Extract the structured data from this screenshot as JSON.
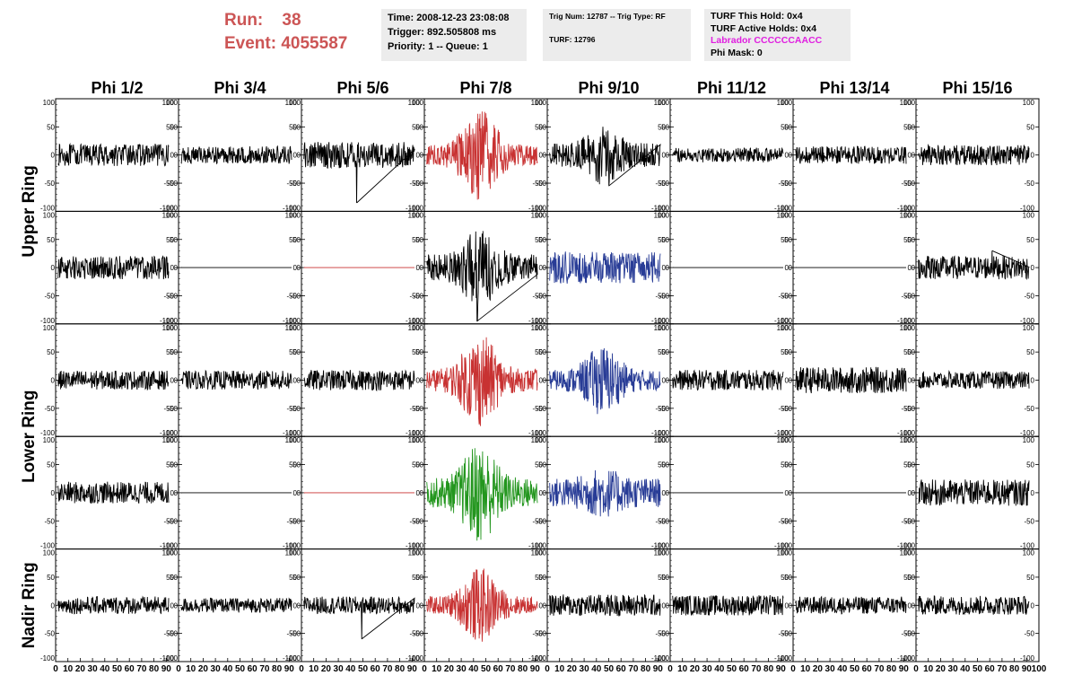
{
  "header": {
    "run_label": "Run:",
    "run_value": "38",
    "event_label": "Event:",
    "event_value": "4055587",
    "time": "Time: 2008-12-23 23:08:08",
    "trigger": "Trigger: 892.505808 ms",
    "priority": "Priority: 1 -- Queue: 1",
    "trig_num": "Trig Num: 12787 -- Trig Type: RF",
    "turf": "TURF: 12796",
    "turf_hold": "TURF This Hold: 0x4",
    "turf_active": "TURF Active Holds: 0x4",
    "labrador": "Labrador CCCCCCAACC",
    "phi_mask": "Phi Mask: 0"
  },
  "chart_data": {
    "type": "line",
    "title": "",
    "columns": [
      "Phi 1/2",
      "Phi 3/4",
      "Phi 5/6",
      "Phi 7/8",
      "Phi 9/10",
      "Phi 11/12",
      "Phi 13/14",
      "Phi 15/16"
    ],
    "ring_labels": [
      "Upper Ring",
      "Lower Ring",
      "Nadir Ring"
    ],
    "xlim": [
      0,
      100
    ],
    "ylim": [
      -100,
      100
    ],
    "x_ticks": [
      0,
      10,
      20,
      30,
      40,
      50,
      60,
      70,
      80,
      90,
      100
    ],
    "y_ticks": [
      100,
      50,
      0,
      -50,
      -100
    ],
    "colors": {
      "black": "#000000",
      "red": "#c83232",
      "blue": "#283c96",
      "green": "#23961e"
    },
    "panels": [
      [
        {
          "color": "black",
          "amp": 15,
          "burst": 0,
          "spike": null
        },
        {
          "color": "black",
          "amp": 12,
          "burst": 0,
          "spike": null
        },
        {
          "color": "black",
          "amp": 18,
          "burst": 0,
          "spike": {
            "x": 45,
            "y": -85
          }
        },
        {
          "color": "red",
          "amp": 14,
          "burst": 50,
          "spike": null
        },
        {
          "color": "black",
          "amp": 16,
          "burst": 25,
          "spike": {
            "x": 50,
            "y": -55
          }
        },
        {
          "color": "black",
          "amp": 10,
          "burst": 0,
          "spike": null
        },
        {
          "color": "black",
          "amp": 12,
          "burst": 0,
          "spike": null
        },
        {
          "color": "black",
          "amp": 14,
          "burst": 0,
          "spike": null
        }
      ],
      [
        {
          "color": "black",
          "amp": 16,
          "burst": 0,
          "spike": null
        },
        {
          "color": "black",
          "amp": 0,
          "burst": 0,
          "spike": null
        },
        {
          "color": "red",
          "amp": 0,
          "burst": 0,
          "spike": null
        },
        {
          "color": "black",
          "amp": 18,
          "burst": 35,
          "spike": {
            "x": 43,
            "y": -95
          }
        },
        {
          "color": "blue",
          "amp": 22,
          "burst": 0,
          "spike": null
        },
        {
          "color": "black",
          "amp": 0,
          "burst": 0,
          "spike": null
        },
        {
          "color": "black",
          "amp": 0,
          "burst": 0,
          "spike": null
        },
        {
          "color": "black",
          "amp": 16,
          "burst": 0,
          "spike": {
            "x": 62,
            "y": 30
          }
        }
      ],
      [
        {
          "color": "black",
          "amp": 13,
          "burst": 0,
          "spike": null
        },
        {
          "color": "black",
          "amp": 13,
          "burst": 0,
          "spike": null
        },
        {
          "color": "black",
          "amp": 14,
          "burst": 0,
          "spike": null
        },
        {
          "color": "red",
          "amp": 15,
          "burst": 50,
          "spike": null
        },
        {
          "color": "blue",
          "amp": 14,
          "burst": 35,
          "spike": null
        },
        {
          "color": "black",
          "amp": 14,
          "burst": 0,
          "spike": null
        },
        {
          "color": "black",
          "amp": 18,
          "burst": 0,
          "spike": null
        },
        {
          "color": "black",
          "amp": 12,
          "burst": 0,
          "spike": null
        }
      ],
      [
        {
          "color": "black",
          "amp": 15,
          "burst": 0,
          "spike": null
        },
        {
          "color": "black",
          "amp": 0,
          "burst": 0,
          "spike": null
        },
        {
          "color": "red",
          "amp": 0,
          "burst": 0,
          "spike": null
        },
        {
          "color": "green",
          "amp": 20,
          "burst": 50,
          "spike": null
        },
        {
          "color": "blue",
          "amp": 20,
          "burst": 15,
          "spike": null
        },
        {
          "color": "black",
          "amp": 0,
          "burst": 0,
          "spike": null
        },
        {
          "color": "black",
          "amp": 0,
          "burst": 0,
          "spike": null
        },
        {
          "color": "black",
          "amp": 18,
          "burst": 0,
          "spike": null
        }
      ],
      [
        {
          "color": "black",
          "amp": 12,
          "burst": 0,
          "spike": null
        },
        {
          "color": "black",
          "amp": 10,
          "burst": 0,
          "spike": null
        },
        {
          "color": "black",
          "amp": 12,
          "burst": 0,
          "spike": {
            "x": 49,
            "y": -60
          }
        },
        {
          "color": "red",
          "amp": 12,
          "burst": 40,
          "spike": null
        },
        {
          "color": "black",
          "amp": 15,
          "burst": 0,
          "spike": null
        },
        {
          "color": "black",
          "amp": 14,
          "burst": 0,
          "spike": null
        },
        {
          "color": "black",
          "amp": 12,
          "burst": 0,
          "spike": null
        },
        {
          "color": "black",
          "amp": 13,
          "burst": 0,
          "spike": null
        }
      ]
    ]
  }
}
